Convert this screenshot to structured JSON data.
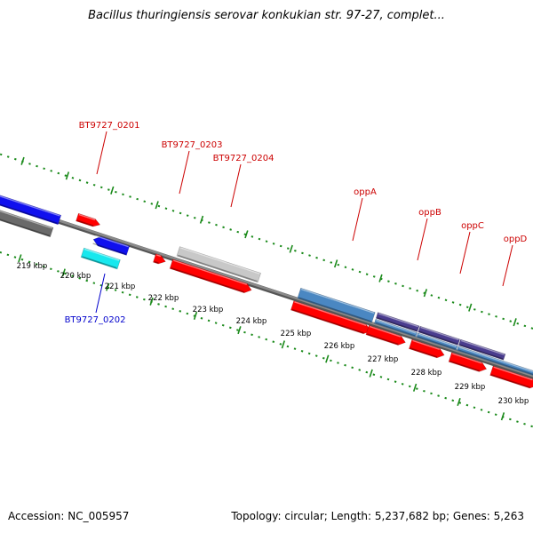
{
  "title": "Bacillus thuringiensis serovar konkukian str. 97-27, complet...",
  "footer": {
    "accession": "Accession: NC_005957",
    "summary": "Topology: circular; Length: 5,237,682 bp; Genes: 5,263"
  },
  "colors": {
    "tick_green": "#1a8a1a",
    "backbone": "#8a8a8a",
    "label_red": "#cc0000",
    "label_blue": "#0000cc",
    "gene_red": "#ff0000",
    "gene_blue": "#1010ee",
    "gene_cyan": "#18e8ee",
    "gene_gray_dark": "#6a6a6a",
    "gene_gray_light": "#c8c8c8",
    "gene_steel": "#4a87c2",
    "gene_purple": "#4a3c8e"
  },
  "scale": {
    "unit": "kbp",
    "ticks": [
      "219 kbp",
      "220 kbp",
      "221 kbp",
      "222 kbp",
      "223 kbp",
      "224 kbp",
      "225 kbp",
      "226 kbp",
      "227 kbp",
      "228 kbp",
      "229 kbp",
      "230 kbp"
    ]
  },
  "gene_labels": [
    {
      "text": "BT9727_0201",
      "color": "red"
    },
    {
      "text": "BT9727_0203",
      "color": "red"
    },
    {
      "text": "BT9727_0204",
      "color": "red"
    },
    {
      "text": "oppA",
      "color": "red"
    },
    {
      "text": "oppB",
      "color": "red"
    },
    {
      "text": "oppC",
      "color": "red"
    },
    {
      "text": "oppD",
      "color": "red"
    },
    {
      "text": "BT9727_0202",
      "color": "blue"
    }
  ]
}
